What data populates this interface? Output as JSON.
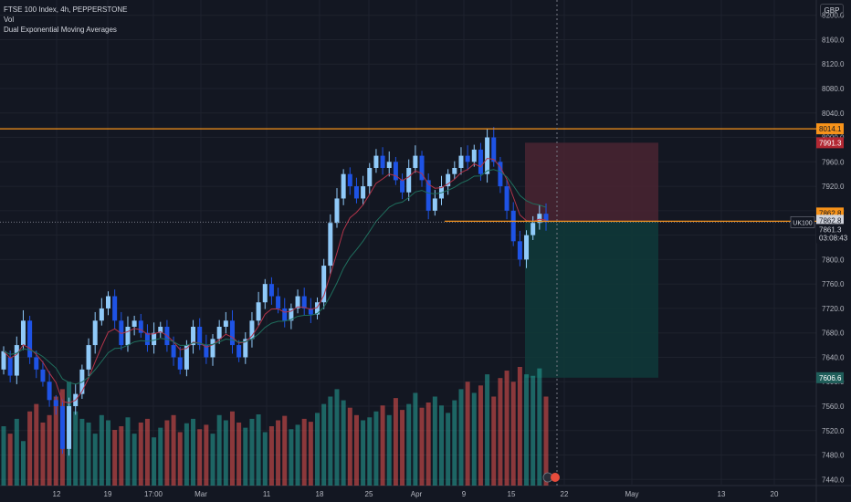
{
  "legend": {
    "title": "FTSE 100 Index, 4h, PEPPERSTONE",
    "volume": "Vol",
    "indicator": "Dual Exponential Moving Averages"
  },
  "currency": "GBP",
  "colors": {
    "background": "#131722",
    "grid": "#1e222d",
    "up": "#90caf9",
    "down": "#1e53e5",
    "vol_up": "#26a69a",
    "vol_down": "#ef5350",
    "ema_fast": "#b2344a",
    "ema_slow": "#1f6e5d",
    "level_line": "#f7931a",
    "stop_zone": "#4a2431",
    "target_zone": "#0f3a3a",
    "text": "#b2b5be"
  },
  "chart_data": {
    "type": "candlestick",
    "symbol": "UK100",
    "y_axis": {
      "ticks": [
        8200,
        8160,
        8120,
        8080,
        8040,
        8000,
        7960,
        7920,
        7880,
        7840,
        7800,
        7760,
        7720,
        7680,
        7640,
        7600,
        7560,
        7520,
        7480,
        7440
      ],
      "tick_labels": [
        "8200.0",
        "8160.0",
        "8120.0",
        "8080.0",
        "8040.0",
        "8000.0",
        "7960.0",
        "7920.0",
        "7880.0",
        "7840.0",
        "7800.0",
        "7760.0",
        "7720.0",
        "7680.0",
        "7640.0",
        "7600.0",
        "7560.0",
        "7520.0",
        "7480.0",
        "7440.0"
      ],
      "range": [
        7430,
        8210
      ]
    },
    "x_axis": {
      "labels": [
        "12",
        "19",
        "17:00",
        "Mar",
        "11",
        "18",
        "25",
        "Apr",
        "9",
        "15",
        "22",
        "May",
        "13",
        "20"
      ]
    },
    "price_labels": [
      {
        "value": 8014.1,
        "text": "8014.1",
        "style": "orange"
      },
      {
        "value": 7991.3,
        "text": "7991.3",
        "style": "red"
      },
      {
        "value": 7862.8,
        "text": "7862.8",
        "style": "orange"
      },
      {
        "value": 7862.8,
        "text": "7862.8",
        "style": "light"
      },
      {
        "value": 7861.3,
        "text": "7861.3",
        "style": "current"
      },
      {
        "value": 7606.6,
        "text": "7606.6",
        "style": "teal"
      }
    ],
    "countdown": "03:08:43",
    "horizontal_lines": [
      {
        "value": 8014.1,
        "name": "resistance"
      },
      {
        "value": 7862.8,
        "name": "support"
      }
    ],
    "position": {
      "entry": 7862.8,
      "stop": 7991.3,
      "target": 7606.6
    },
    "price_path": [
      [
        7620,
        7650
      ],
      [
        7640,
        7610
      ],
      [
        7610,
        7660
      ],
      [
        7660,
        7700
      ],
      [
        7700,
        7640
      ],
      [
        7640,
        7620
      ],
      [
        7620,
        7600
      ],
      [
        7600,
        7570
      ],
      [
        7570,
        7560
      ],
      [
        7560,
        7490
      ],
      [
        7490,
        7560
      ],
      [
        7560,
        7580
      ],
      [
        7580,
        7620
      ],
      [
        7620,
        7660
      ],
      [
        7660,
        7700
      ],
      [
        7700,
        7720
      ],
      [
        7720,
        7740
      ],
      [
        7740,
        7700
      ],
      [
        7700,
        7660
      ],
      [
        7660,
        7690
      ],
      [
        7690,
        7700
      ],
      [
        7700,
        7680
      ],
      [
        7680,
        7660
      ],
      [
        7660,
        7680
      ],
      [
        7680,
        7690
      ],
      [
        7690,
        7660
      ],
      [
        7660,
        7640
      ],
      [
        7640,
        7620
      ],
      [
        7620,
        7660
      ],
      [
        7660,
        7690
      ],
      [
        7690,
        7660
      ],
      [
        7660,
        7640
      ],
      [
        7640,
        7670
      ],
      [
        7670,
        7690
      ],
      [
        7690,
        7700
      ],
      [
        7700,
        7660
      ],
      [
        7660,
        7640
      ],
      [
        7640,
        7670
      ],
      [
        7670,
        7700
      ],
      [
        7700,
        7730
      ],
      [
        7730,
        7760
      ],
      [
        7760,
        7740
      ],
      [
        7740,
        7720
      ],
      [
        7720,
        7700
      ],
      [
        7700,
        7720
      ],
      [
        7720,
        7740
      ],
      [
        7740,
        7720
      ],
      [
        7720,
        7710
      ],
      [
        7710,
        7730
      ],
      [
        7730,
        7790
      ],
      [
        7790,
        7860
      ],
      [
        7860,
        7900
      ],
      [
        7900,
        7940
      ],
      [
        7940,
        7920
      ],
      [
        7920,
        7900
      ],
      [
        7900,
        7920
      ],
      [
        7920,
        7950
      ],
      [
        7950,
        7970
      ],
      [
        7970,
        7950
      ],
      [
        7950,
        7960
      ],
      [
        7960,
        7930
      ],
      [
        7930,
        7910
      ],
      [
        7910,
        7950
      ],
      [
        7950,
        7970
      ],
      [
        7970,
        7930
      ],
      [
        7930,
        7880
      ],
      [
        7880,
        7900
      ],
      [
        7900,
        7920
      ],
      [
        7920,
        7940
      ],
      [
        7940,
        7950
      ],
      [
        7950,
        7970
      ],
      [
        7970,
        7960
      ],
      [
        7960,
        7980
      ],
      [
        7980,
        7940
      ],
      [
        7940,
        8000
      ],
      [
        8000,
        7960
      ],
      [
        7960,
        7920
      ],
      [
        7920,
        7880
      ],
      [
        7880,
        7830
      ],
      [
        7830,
        7800
      ],
      [
        7800,
        7840
      ],
      [
        7840,
        7860
      ],
      [
        7860,
        7875
      ],
      [
        7875,
        7861.3
      ]
    ],
    "volume": [
      80,
      70,
      90,
      60,
      100,
      110,
      85,
      95,
      120,
      130,
      140,
      100,
      90,
      85,
      70,
      95,
      88,
      75,
      80,
      92,
      70,
      85,
      90,
      65,
      78,
      88,
      95,
      72,
      84,
      90,
      76,
      82,
      70,
      95,
      88,
      100,
      85,
      78,
      90,
      96,
      72,
      80,
      88,
      94,
      76,
      82,
      90,
      86,
      98,
      110,
      120,
      130,
      115,
      105,
      95,
      88,
      92,
      100,
      108,
      95,
      118,
      102,
      110,
      125,
      105,
      112,
      120,
      108,
      98,
      115,
      130,
      140,
      125,
      135,
      150,
      120,
      145,
      155,
      140,
      160,
      150,
      148,
      158,
      120
    ]
  }
}
